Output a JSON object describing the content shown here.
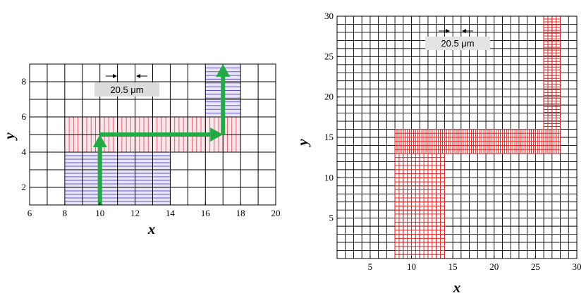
{
  "chart_data": [
    {
      "type": "grid-diagram",
      "xlabel": "x",
      "ylabel": "y",
      "xlim": [
        6,
        20
      ],
      "ylim": [
        1,
        9
      ],
      "xticks": [
        "6",
        "8",
        "10",
        "12",
        "14",
        "16",
        "18",
        "20"
      ],
      "yticks": [
        "2",
        "4",
        "6",
        "8"
      ],
      "scale_label": "20.5 μm",
      "grid_cell": 1,
      "regions": [
        {
          "name": "lower-channel",
          "x": [
            8,
            14
          ],
          "y": [
            1,
            5
          ],
          "fill": "#e8e6f6",
          "hatch": "horizontal",
          "hatch_color": "#6655c8",
          "hatch_count": 20
        },
        {
          "name": "horizontal-channel",
          "x": [
            8,
            18
          ],
          "y": [
            4,
            6
          ],
          "fill": "#fbe6ea",
          "hatch": "vertical",
          "hatch_color": "#e06070",
          "hatch_count": 40
        },
        {
          "name": "upper-channel",
          "x": [
            16,
            18
          ],
          "y": [
            6,
            9
          ],
          "fill": "#e8e6f6",
          "hatch": "horizontal",
          "hatch_color": "#6655c8",
          "hatch_count": 14
        }
      ],
      "path": {
        "color": "#22aa44",
        "points": [
          [
            10,
            1
          ],
          [
            10,
            5
          ],
          [
            17,
            5
          ],
          [
            17,
            9
          ]
        ]
      }
    },
    {
      "type": "grid-diagram",
      "xlabel": "x",
      "ylabel": "y",
      "xlim": [
        1,
        30
      ],
      "ylim": [
        0,
        30
      ],
      "xticks": [
        "5",
        "10",
        "15",
        "20",
        "25",
        "30"
      ],
      "yticks": [
        "5",
        "10",
        "15",
        "20",
        "25",
        "30"
      ],
      "scale_label": "20.5 μm",
      "grid_cell": 1,
      "regions": [
        {
          "name": "lower-channel",
          "x": [
            8,
            14
          ],
          "y": [
            0,
            13
          ],
          "color": "#ee2222",
          "nx": 12,
          "ny": 26
        },
        {
          "name": "horizontal-channel",
          "x": [
            8,
            28
          ],
          "y": [
            13,
            16
          ],
          "color": "#ee2222",
          "nx": 80,
          "ny": 6
        },
        {
          "name": "upper-channel",
          "x": [
            26,
            28
          ],
          "y": [
            16,
            30
          ],
          "color": "#ee2222",
          "nx": 4,
          "ny": 40
        }
      ]
    }
  ]
}
